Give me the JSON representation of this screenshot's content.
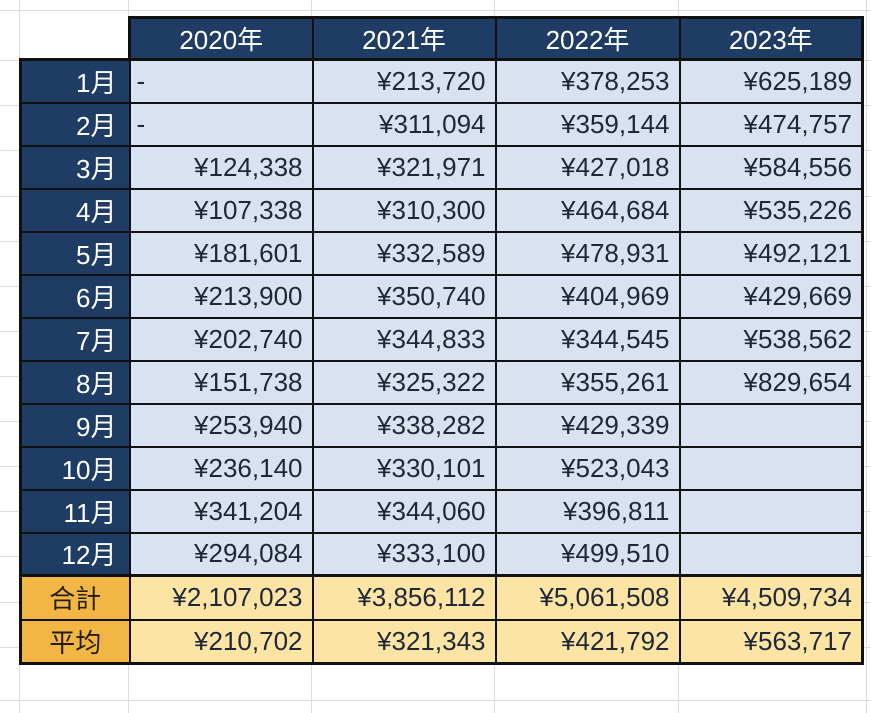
{
  "colors": {
    "navy": "#1f3c64",
    "lightblue": "#d8e2f1",
    "gold": "#f1b644",
    "lightgold": "#fce5a4",
    "line": "#111111",
    "grid": "#dcdcdc",
    "valuetext": "#1f2737",
    "headertext": "#ffffff",
    "summarytext": "#231d0e"
  },
  "table": {
    "columns": [
      "2020年",
      "2021年",
      "2022年",
      "2023年"
    ],
    "rows": [
      {
        "label": "1月",
        "values": [
          "-",
          "¥213,720",
          "¥378,253",
          "¥625,189"
        ]
      },
      {
        "label": "2月",
        "values": [
          "-",
          "¥311,094",
          "¥359,144",
          "¥474,757"
        ]
      },
      {
        "label": "3月",
        "values": [
          "¥124,338",
          "¥321,971",
          "¥427,018",
          "¥584,556"
        ]
      },
      {
        "label": "4月",
        "values": [
          "¥107,338",
          "¥310,300",
          "¥464,684",
          "¥535,226"
        ]
      },
      {
        "label": "5月",
        "values": [
          "¥181,601",
          "¥332,589",
          "¥478,931",
          "¥492,121"
        ]
      },
      {
        "label": "6月",
        "values": [
          "¥213,900",
          "¥350,740",
          "¥404,969",
          "¥429,669"
        ]
      },
      {
        "label": "7月",
        "values": [
          "¥202,740",
          "¥344,833",
          "¥344,545",
          "¥538,562"
        ]
      },
      {
        "label": "8月",
        "values": [
          "¥151,738",
          "¥325,322",
          "¥355,261",
          "¥829,654"
        ]
      },
      {
        "label": "9月",
        "values": [
          "¥253,940",
          "¥338,282",
          "¥429,339",
          ""
        ]
      },
      {
        "label": "10月",
        "values": [
          "¥236,140",
          "¥330,101",
          "¥523,043",
          ""
        ]
      },
      {
        "label": "11月",
        "values": [
          "¥341,204",
          "¥344,060",
          "¥396,811",
          ""
        ]
      },
      {
        "label": "12月",
        "values": [
          "¥294,084",
          "¥333,100",
          "¥499,510",
          ""
        ]
      }
    ],
    "summary_rows": [
      {
        "label": "合計",
        "values": [
          "¥2,107,023",
          "¥3,856,112",
          "¥5,061,508",
          "¥4,509,734"
        ]
      },
      {
        "label": "平均",
        "values": [
          "¥210,702",
          "¥321,343",
          "¥421,792",
          "¥563,717"
        ]
      }
    ]
  }
}
